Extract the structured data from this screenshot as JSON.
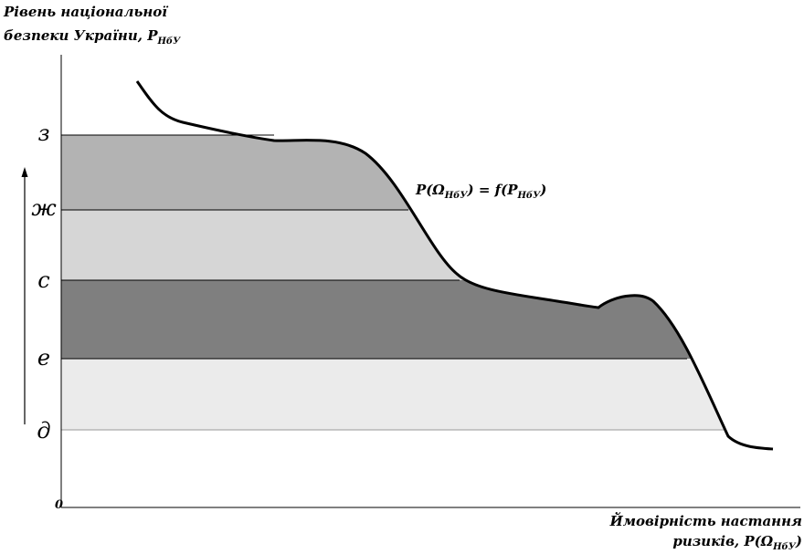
{
  "y_axis": {
    "title_line1": "Рівень національної",
    "title_line2_prefix": "безпеки України, P",
    "title_line2_sub": "НбУ",
    "origin_label": "0"
  },
  "x_axis": {
    "title_line1": "Ймовірність настання",
    "title_line2_prefix": "ризиків, P(Ω",
    "title_line2_sub": "НбУ",
    "title_line2_suffix": ")"
  },
  "levels": [
    {
      "label": "з",
      "color": "#b3b3b3"
    },
    {
      "label": "ж",
      "color": "#d6d6d6"
    },
    {
      "label": "с",
      "color": "#7f7f7f"
    },
    {
      "label": "е",
      "color": "#ebebeb"
    },
    {
      "label": "д",
      "color": "#ffffff"
    }
  ],
  "formula": {
    "prefix": "P(Ω",
    "sub1": "НбУ",
    "middle": ") = f(P",
    "sub2": "НбУ",
    "suffix": ")"
  },
  "colors": {
    "axis": "#000000",
    "curve": "#000000",
    "level_line": "#000000"
  }
}
